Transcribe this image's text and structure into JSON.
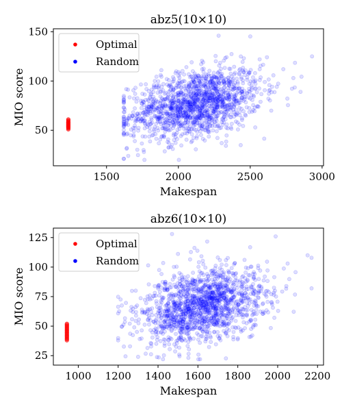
{
  "chart_data": [
    {
      "type": "scatter",
      "title": "abz5(10×10)",
      "xlabel": "Makespan",
      "ylabel": "MIO score",
      "xlim": [
        1130,
        3010
      ],
      "ylim": [
        14,
        153
      ],
      "xticks": [
        1500,
        2000,
        2500,
        3000
      ],
      "yticks": [
        50,
        100,
        150
      ],
      "legend": [
        "Optimal",
        "Random"
      ],
      "legend_position": "top-left",
      "colors": {
        "optimal": "#ff0000",
        "random": "#0000ff"
      },
      "series": [
        {
          "name": "Optimal",
          "x_value": 1234,
          "y_values": [
            51,
            52,
            53,
            53.5,
            54,
            55,
            55.5,
            56,
            57,
            57.5,
            58,
            59,
            60,
            61
          ]
        },
        {
          "name": "Random",
          "count": 1500,
          "x_mean": 2120,
          "x_std": 230,
          "x_min": 1620,
          "x_max": 2930,
          "y_mean": 77,
          "y_std": 18,
          "y_min": 20,
          "y_max": 146,
          "correlation": 0.35,
          "extreme_points": [
            [
              1620,
              21
            ],
            [
              2930,
              125
            ],
            [
              2850,
              89
            ],
            [
              2800,
              103
            ],
            [
              2280,
              146
            ],
            [
              1690,
              49
            ],
            [
              2730,
              112
            ]
          ]
        }
      ]
    },
    {
      "type": "scatter",
      "title": "abz6(10×10)",
      "xlabel": "Makespan",
      "ylabel": "MIO score",
      "xlim": [
        875,
        2230
      ],
      "ylim": [
        17,
        133
      ],
      "xticks": [
        1000,
        1200,
        1400,
        1600,
        1800,
        2000,
        2200
      ],
      "yticks": [
        25,
        50,
        75,
        100,
        125
      ],
      "legend": [
        "Optimal",
        "Random"
      ],
      "legend_position": "top-left",
      "colors": {
        "optimal": "#ff0000",
        "random": "#0000ff"
      },
      "series": [
        {
          "name": "Optimal",
          "x_value": 943,
          "y_values": [
            38,
            39,
            40,
            41,
            42,
            43,
            44,
            45,
            46,
            47,
            48,
            49,
            50,
            51,
            52
          ]
        },
        {
          "name": "Random",
          "count": 1500,
          "x_mean": 1620,
          "x_std": 160,
          "x_min": 1200,
          "x_max": 2170,
          "y_mean": 67,
          "y_std": 16,
          "y_min": 22,
          "y_max": 128,
          "correlation": 0.3,
          "extreme_points": [
            [
              1200,
              38
            ],
            [
              2170,
              82
            ],
            [
              2150,
              110
            ],
            [
              1990,
              126
            ],
            [
              1470,
              128
            ],
            [
              1300,
              24
            ],
            [
              2050,
              103
            ]
          ]
        }
      ]
    }
  ]
}
